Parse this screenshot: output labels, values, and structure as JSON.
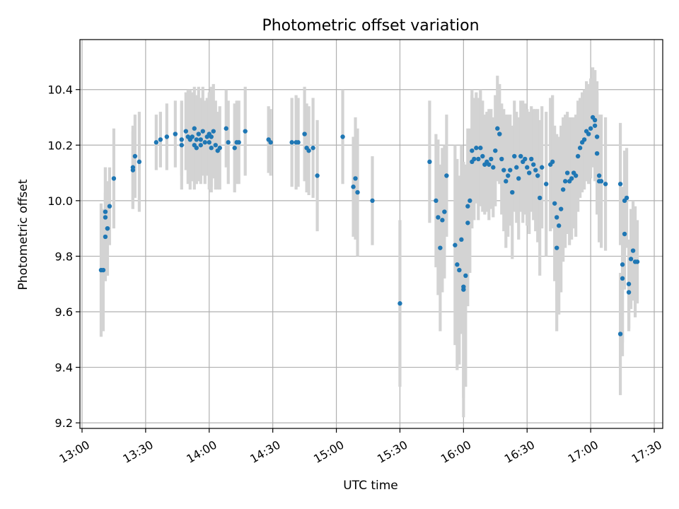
{
  "chart_data": {
    "type": "scatter",
    "title": "Photometric offset variation",
    "xlabel": "UTC time",
    "ylabel": "Photometric offset",
    "x_unit": "UTC time (HH:MM)",
    "xlim": [
      "12:59",
      "17:34"
    ],
    "ylim": [
      9.18,
      10.58
    ],
    "x_ticks": [
      "13:00",
      "13:30",
      "14:00",
      "14:30",
      "15:00",
      "15:30",
      "16:00",
      "16:30",
      "17:00",
      "17:30"
    ],
    "y_ticks": [
      9.2,
      9.4,
      9.6,
      9.8,
      10.0,
      10.2,
      10.4
    ],
    "y_tick_labels": [
      "9.2",
      "9.4",
      "9.6",
      "9.8",
      "10.0",
      "10.2",
      "10.4"
    ],
    "grid": true,
    "legend": "none",
    "marker_color": "#1f77b4",
    "errorbar_color": "#d3d3d3",
    "series": [
      {
        "points": [
          [
            "13:09",
            9.75,
            0.24
          ],
          [
            "13:10",
            9.75,
            0.22
          ],
          [
            "13:11",
            9.87,
            0.16
          ],
          [
            "13:11",
            9.96,
            0.16
          ],
          [
            "13:11",
            9.94,
            0.18
          ],
          [
            "13:12",
            9.9,
            0.17
          ],
          [
            "13:12",
            9.9,
            0.17
          ],
          [
            "13:13",
            9.98,
            0.14
          ],
          [
            "13:15",
            10.08,
            0.18
          ],
          [
            "13:24",
            10.11,
            0.14
          ],
          [
            "13:24",
            10.12,
            0.15
          ],
          [
            "13:25",
            10.16,
            0.15
          ],
          [
            "13:27",
            10.14,
            0.18
          ],
          [
            "13:35",
            10.21,
            0.1
          ],
          [
            "13:37",
            10.22,
            0.1
          ],
          [
            "13:40",
            10.23,
            0.12
          ],
          [
            "13:44",
            10.24,
            0.12
          ],
          [
            "13:47",
            10.22,
            0.13
          ],
          [
            "13:47",
            10.2,
            0.16
          ],
          [
            "13:49",
            10.25,
            0.14
          ],
          [
            "13:50",
            10.23,
            0.17
          ],
          [
            "13:51",
            10.22,
            0.18
          ],
          [
            "13:52",
            10.23,
            0.16
          ],
          [
            "13:53",
            10.26,
            0.15
          ],
          [
            "13:53",
            10.2,
            0.16
          ],
          [
            "13:54",
            10.22,
            0.16
          ],
          [
            "13:54",
            10.19,
            0.13
          ],
          [
            "13:55",
            10.24,
            0.17
          ],
          [
            "13:56",
            10.22,
            0.15
          ],
          [
            "13:56",
            10.2,
            0.14
          ],
          [
            "13:57",
            10.25,
            0.16
          ],
          [
            "13:58",
            10.21,
            0.15
          ],
          [
            "13:59",
            10.23,
            0.14
          ],
          [
            "14:00",
            10.24,
            0.15
          ],
          [
            "14:00",
            10.21,
            0.17
          ],
          [
            "14:01",
            10.23,
            0.18
          ],
          [
            "14:01",
            10.19,
            0.16
          ],
          [
            "14:02",
            10.25,
            0.17
          ],
          [
            "14:03",
            10.2,
            0.16
          ],
          [
            "14:04",
            10.18,
            0.14
          ],
          [
            "14:05",
            10.19,
            0.15
          ],
          [
            "14:08",
            10.26,
            0.14
          ],
          [
            "14:09",
            10.21,
            0.15
          ],
          [
            "14:12",
            10.19,
            0.16
          ],
          [
            "14:13",
            10.21,
            0.15
          ],
          [
            "14:14",
            10.21,
            0.15
          ],
          [
            "14:17",
            10.25,
            0.16
          ],
          [
            "14:28",
            10.22,
            0.12
          ],
          [
            "14:29",
            10.21,
            0.12
          ],
          [
            "14:39",
            10.21,
            0.16
          ],
          [
            "14:41",
            10.21,
            0.17
          ],
          [
            "14:42",
            10.21,
            0.16
          ],
          [
            "14:45",
            10.24,
            0.17
          ],
          [
            "14:46",
            10.19,
            0.16
          ],
          [
            "14:47",
            10.18,
            0.16
          ],
          [
            "14:49",
            10.19,
            0.18
          ],
          [
            "14:51",
            10.09,
            0.2
          ],
          [
            "15:03",
            10.23,
            0.17
          ],
          [
            "15:08",
            10.05,
            0.18
          ],
          [
            "15:09",
            10.08,
            0.22
          ],
          [
            "15:10",
            10.03,
            0.23
          ],
          [
            "15:17",
            10.0,
            0.16
          ],
          [
            "15:30",
            9.63,
            0.3
          ],
          [
            "15:44",
            10.14,
            0.22
          ],
          [
            "15:47",
            10.0,
            0.24
          ],
          [
            "15:48",
            9.94,
            0.28
          ],
          [
            "15:49",
            9.83,
            0.3
          ],
          [
            "15:50",
            9.93,
            0.26
          ],
          [
            "15:51",
            9.96,
            0.24
          ],
          [
            "15:52",
            10.09,
            0.22
          ],
          [
            "15:56",
            9.84,
            0.36
          ],
          [
            "15:57",
            9.77,
            0.38
          ],
          [
            "15:58",
            9.75,
            0.34
          ],
          [
            "15:59",
            9.86,
            0.34
          ],
          [
            "16:00",
            9.69,
            0.4
          ],
          [
            "16:00",
            9.68,
            0.46
          ],
          [
            "16:01",
            9.73,
            0.4
          ],
          [
            "16:02",
            9.92,
            0.3
          ],
          [
            "16:02",
            9.98,
            0.28
          ],
          [
            "16:03",
            10.0,
            0.26
          ],
          [
            "16:04",
            10.14,
            0.24
          ],
          [
            "16:04",
            10.18,
            0.22
          ],
          [
            "16:05",
            10.15,
            0.22
          ],
          [
            "16:06",
            10.19,
            0.2
          ],
          [
            "16:07",
            10.15,
            0.22
          ],
          [
            "16:08",
            10.19,
            0.21
          ],
          [
            "16:09",
            10.16,
            0.2
          ],
          [
            "16:10",
            10.13,
            0.18
          ],
          [
            "16:11",
            10.14,
            0.18
          ],
          [
            "16:12",
            10.13,
            0.2
          ],
          [
            "16:13",
            10.15,
            0.18
          ],
          [
            "16:14",
            10.12,
            0.18
          ],
          [
            "16:15",
            10.18,
            0.2
          ],
          [
            "16:16",
            10.26,
            0.19
          ],
          [
            "16:17",
            10.24,
            0.18
          ],
          [
            "16:18",
            10.15,
            0.2
          ],
          [
            "16:19",
            10.11,
            0.22
          ],
          [
            "16:20",
            10.07,
            0.24
          ],
          [
            "16:21",
            10.09,
            0.22
          ],
          [
            "16:22",
            10.11,
            0.2
          ],
          [
            "16:23",
            10.03,
            0.24
          ],
          [
            "16:24",
            10.16,
            0.2
          ],
          [
            "16:25",
            10.12,
            0.2
          ],
          [
            "16:26",
            10.08,
            0.22
          ],
          [
            "16:27",
            10.16,
            0.2
          ],
          [
            "16:28",
            10.14,
            0.22
          ],
          [
            "16:29",
            10.15,
            0.2
          ],
          [
            "16:30",
            10.12,
            0.21
          ],
          [
            "16:31",
            10.1,
            0.22
          ],
          [
            "16:32",
            10.15,
            0.19
          ],
          [
            "16:33",
            10.13,
            0.2
          ],
          [
            "16:34",
            10.11,
            0.22
          ],
          [
            "16:35",
            10.09,
            0.24
          ],
          [
            "16:36",
            10.01,
            0.28
          ],
          [
            "16:37",
            10.12,
            0.22
          ],
          [
            "16:39",
            10.06,
            0.26
          ],
          [
            "16:41",
            10.13,
            0.24
          ],
          [
            "16:42",
            10.14,
            0.24
          ],
          [
            "16:43",
            9.99,
            0.28
          ],
          [
            "16:44",
            9.94,
            0.3
          ],
          [
            "16:44",
            9.83,
            0.3
          ],
          [
            "16:45",
            9.91,
            0.32
          ],
          [
            "16:46",
            9.97,
            0.3
          ],
          [
            "16:47",
            10.04,
            0.26
          ],
          [
            "16:48",
            10.07,
            0.24
          ],
          [
            "16:49",
            10.1,
            0.22
          ],
          [
            "16:50",
            10.07,
            0.23
          ],
          [
            "16:51",
            10.08,
            0.22
          ],
          [
            "16:52",
            10.1,
            0.2
          ],
          [
            "16:53",
            10.09,
            0.22
          ],
          [
            "16:54",
            10.16,
            0.2
          ],
          [
            "16:55",
            10.19,
            0.18
          ],
          [
            "16:56",
            10.21,
            0.18
          ],
          [
            "16:57",
            10.22,
            0.18
          ],
          [
            "16:58",
            10.25,
            0.18
          ],
          [
            "16:59",
            10.24,
            0.18
          ],
          [
            "17:00",
            10.26,
            0.18
          ],
          [
            "17:01",
            10.3,
            0.18
          ],
          [
            "17:02",
            10.29,
            0.18
          ],
          [
            "17:02",
            10.27,
            0.2
          ],
          [
            "17:03",
            10.23,
            0.2
          ],
          [
            "17:03",
            10.17,
            0.22
          ],
          [
            "17:04",
            10.09,
            0.22
          ],
          [
            "17:04",
            10.07,
            0.22
          ],
          [
            "17:05",
            10.07,
            0.24
          ],
          [
            "17:07",
            10.06,
            0.24
          ],
          [
            "17:14",
            10.06,
            0.22
          ],
          [
            "17:14",
            9.52,
            0.22
          ],
          [
            "17:15",
            9.72,
            0.28
          ],
          [
            "17:15",
            9.77,
            0.28
          ],
          [
            "17:16",
            9.88,
            0.2
          ],
          [
            "17:16",
            10.0,
            0.18
          ],
          [
            "17:17",
            10.01,
            0.18
          ],
          [
            "17:18",
            9.67,
            0.14
          ],
          [
            "17:18",
            9.7,
            0.16
          ],
          [
            "17:19",
            9.79,
            0.18
          ],
          [
            "17:20",
            9.82,
            0.18
          ],
          [
            "17:21",
            9.78,
            0.2
          ],
          [
            "17:22",
            9.78,
            0.15
          ]
        ]
      }
    ]
  }
}
